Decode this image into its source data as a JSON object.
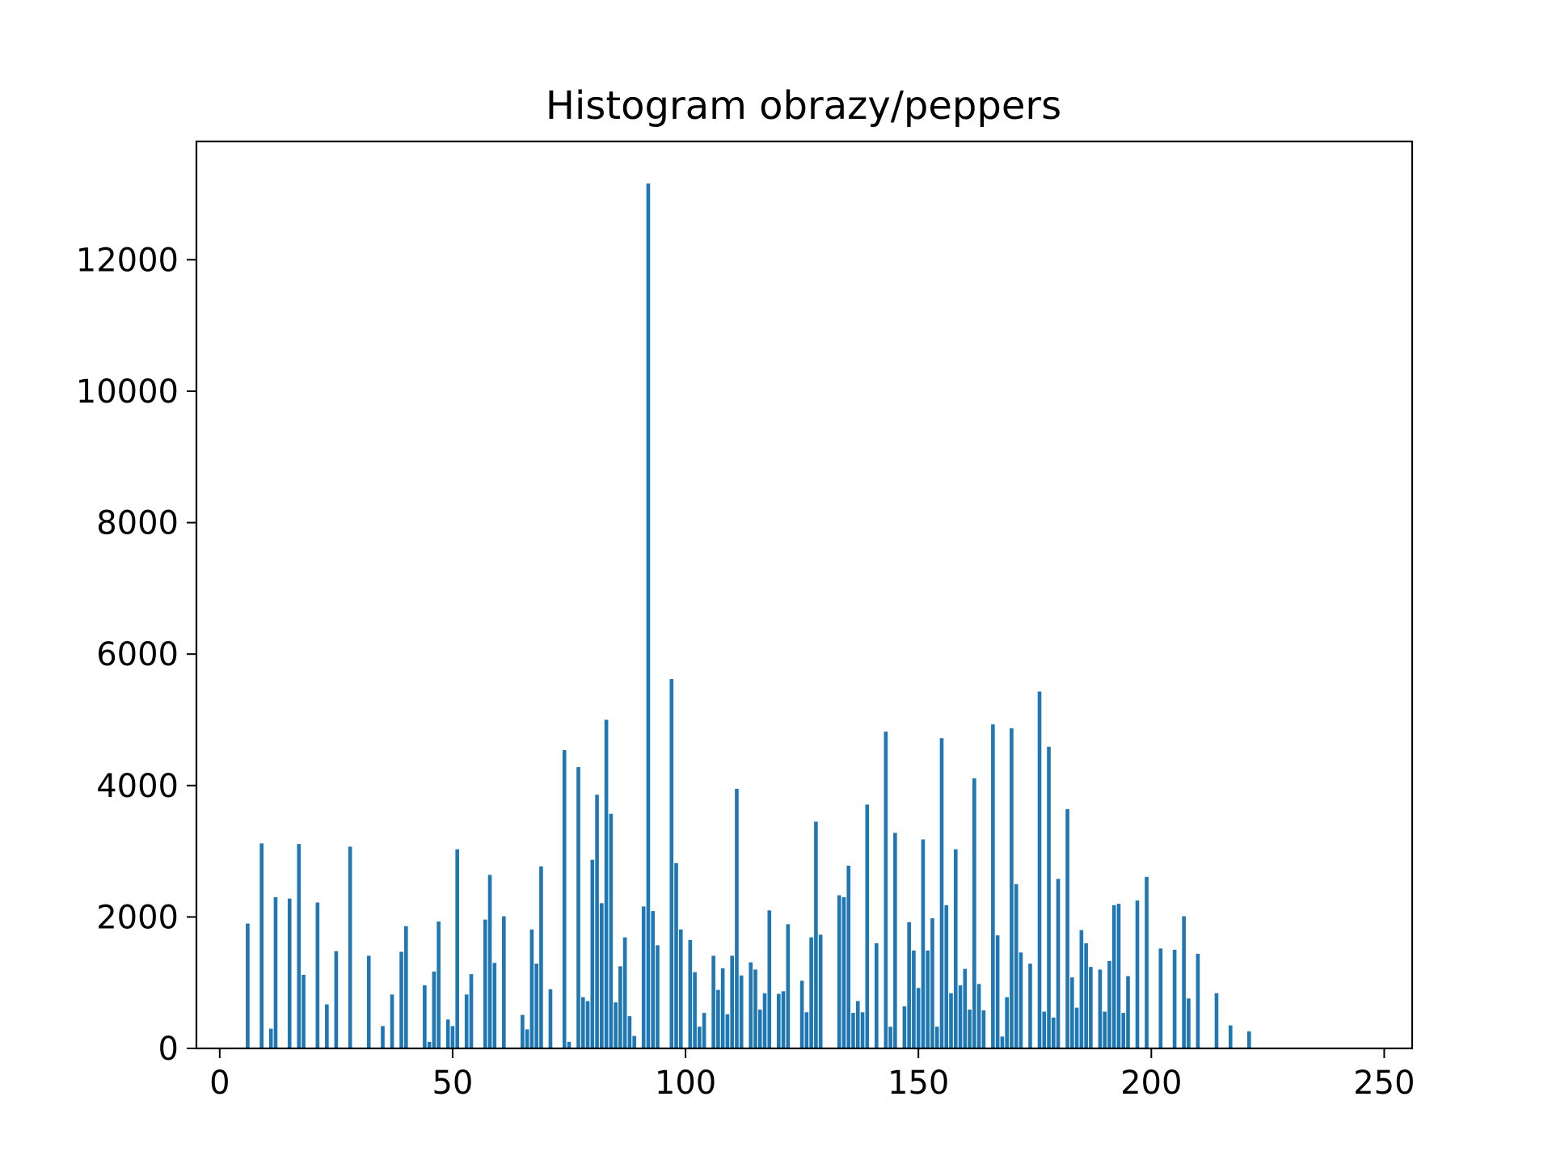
{
  "chart_data": {
    "type": "bar",
    "title": "Histogram obrazy/peppers",
    "xlabel": "",
    "ylabel": "",
    "xlim": [
      -5,
      256
    ],
    "ylim": [
      0,
      13800
    ],
    "xticks": [
      0,
      50,
      100,
      150,
      200,
      250
    ],
    "yticks": [
      0,
      2000,
      4000,
      6000,
      8000,
      10000,
      12000
    ],
    "grid": false,
    "legend": "none",
    "bar_color": "#1f77b4",
    "bar_width": 0.8,
    "x": [
      6,
      9,
      11,
      12,
      15,
      17,
      18,
      21,
      23,
      25,
      28,
      32,
      35,
      37,
      39,
      40,
      44,
      45,
      46,
      47,
      49,
      50,
      51,
      53,
      54,
      57,
      58,
      59,
      61,
      65,
      66,
      67,
      68,
      69,
      71,
      74,
      75,
      77,
      78,
      79,
      80,
      81,
      82,
      83,
      84,
      85,
      86,
      87,
      88,
      89,
      91,
      92,
      93,
      94,
      97,
      98,
      99,
      101,
      102,
      103,
      104,
      106,
      107,
      108,
      109,
      110,
      111,
      112,
      114,
      115,
      116,
      117,
      118,
      120,
      121,
      122,
      125,
      126,
      127,
      128,
      129,
      133,
      134,
      135,
      136,
      137,
      138,
      139,
      141,
      143,
      144,
      145,
      147,
      148,
      149,
      150,
      151,
      152,
      153,
      154,
      155,
      156,
      157,
      158,
      159,
      160,
      161,
      162,
      163,
      164,
      166,
      167,
      168,
      169,
      170,
      171,
      172,
      174,
      176,
      177,
      178,
      179,
      180,
      182,
      183,
      184,
      185,
      186,
      187,
      189,
      190,
      191,
      192,
      193,
      194,
      195,
      197,
      199,
      202,
      205,
      207,
      208,
      210,
      214,
      217,
      221
    ],
    "values": [
      1900,
      3120,
      300,
      2300,
      2280,
      3110,
      1120,
      2220,
      670,
      1480,
      3070,
      1410,
      340,
      820,
      1470,
      1860,
      960,
      100,
      1170,
      1930,
      440,
      340,
      3030,
      820,
      1130,
      1960,
      2640,
      1300,
      2010,
      510,
      290,
      1810,
      1290,
      2770,
      900,
      4540,
      100,
      4280,
      780,
      720,
      2870,
      3860,
      2210,
      5000,
      3570,
      700,
      1250,
      1690,
      490,
      190,
      2160,
      13160,
      2090,
      1570,
      5620,
      2820,
      1810,
      1650,
      1160,
      330,
      540,
      1410,
      890,
      1220,
      520,
      1410,
      3950,
      1110,
      1310,
      1200,
      590,
      840,
      2100,
      830,
      870,
      1890,
      1030,
      550,
      1690,
      3450,
      1730,
      2330,
      2300,
      2780,
      540,
      720,
      550,
      3710,
      1600,
      4820,
      330,
      3280,
      640,
      1920,
      1490,
      920,
      3180,
      1490,
      1980,
      330,
      4720,
      2180,
      840,
      3030,
      960,
      1210,
      590,
      4110,
      980,
      580,
      4930,
      1720,
      180,
      780,
      4870,
      2500,
      1460,
      1290,
      5430,
      560,
      4590,
      470,
      2580,
      3640,
      1080,
      620,
      1800,
      1600,
      1240,
      1200,
      560,
      1330,
      2180,
      2200,
      540,
      1100,
      2250,
      2610,
      1520,
      1500,
      2010,
      760,
      1440,
      840,
      350,
      260
    ]
  }
}
